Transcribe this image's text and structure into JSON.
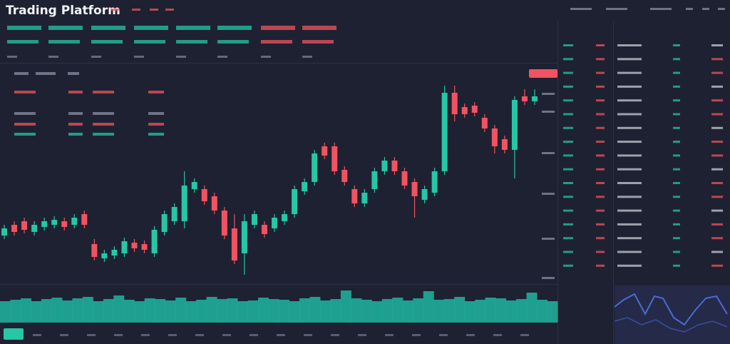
{
  "header": {
    "title": "Trading Platform"
  },
  "chart_data": {
    "type": "candlestick",
    "open": [
      70,
      85,
      90,
      75,
      82,
      85,
      90,
      85,
      100,
      58,
      38,
      42,
      45,
      60,
      58,
      45,
      75,
      90,
      90,
      135,
      135,
      125,
      105,
      80,
      45,
      85,
      85,
      80,
      90,
      100,
      132,
      145,
      195,
      195,
      162,
      135,
      115,
      135,
      160,
      175,
      160,
      145,
      120,
      130,
      160,
      270,
      250,
      252,
      235,
      220,
      205,
      190,
      265,
      258
    ],
    "high": [
      85,
      90,
      95,
      90,
      95,
      97,
      95,
      100,
      105,
      65,
      50,
      55,
      67,
      65,
      63,
      83,
      105,
      115,
      160,
      150,
      140,
      130,
      110,
      100,
      100,
      105,
      90,
      100,
      105,
      140,
      150,
      190,
      200,
      200,
      167,
      140,
      135,
      165,
      180,
      180,
      165,
      150,
      140,
      165,
      280,
      280,
      255,
      257,
      240,
      225,
      210,
      265,
      275,
      275
    ],
    "low": [
      65,
      70,
      73,
      70,
      77,
      80,
      77,
      80,
      80,
      35,
      33,
      37,
      40,
      47,
      45,
      40,
      70,
      85,
      80,
      130,
      113,
      100,
      65,
      30,
      15,
      80,
      67,
      75,
      85,
      95,
      127,
      140,
      177,
      155,
      140,
      110,
      110,
      130,
      155,
      155,
      135,
      95,
      115,
      125,
      155,
      230,
      235,
      237,
      215,
      185,
      185,
      150,
      253,
      253
    ],
    "close": [
      80,
      75,
      78,
      85,
      90,
      92,
      82,
      95,
      85,
      40,
      45,
      50,
      62,
      52,
      50,
      78,
      100,
      110,
      140,
      145,
      118,
      105,
      70,
      35,
      90,
      100,
      72,
      95,
      100,
      135,
      145,
      185,
      182,
      160,
      145,
      115,
      130,
      160,
      175,
      160,
      140,
      125,
      135,
      160,
      270,
      240,
      240,
      242,
      220,
      195,
      190,
      260,
      258,
      265
    ],
    "up_color": "#26c6a6",
    "down_color": "#ef5460",
    "volume": [
      30,
      32,
      34,
      30,
      33,
      35,
      31,
      34,
      36,
      30,
      33,
      38,
      32,
      30,
      34,
      33,
      31,
      35,
      30,
      32,
      36,
      33,
      34,
      30,
      31,
      35,
      33,
      32,
      30,
      34,
      36,
      31,
      33,
      45,
      34,
      32,
      30,
      33,
      35,
      31,
      34,
      44,
      32,
      33,
      36,
      30,
      32,
      35,
      34,
      31,
      33,
      42,
      32,
      30
    ],
    "volume_color": "#1fb5a0"
  }
}
